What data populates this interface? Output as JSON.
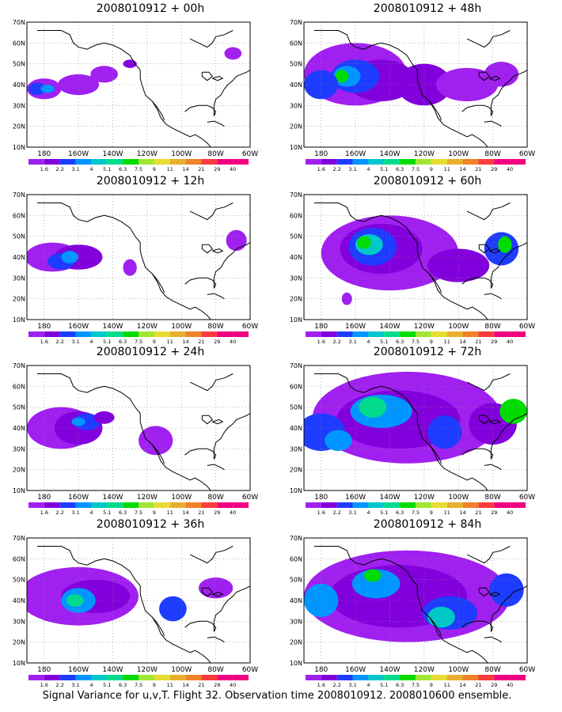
{
  "panels": [
    {
      "title": "2008010912 + 00h"
    },
    {
      "title": "2008010912 + 48h"
    },
    {
      "title": "2008010912 + 12h"
    },
    {
      "title": "2008010912 + 60h"
    },
    {
      "title": "2008010912 + 24h"
    },
    {
      "title": "2008010912 + 72h"
    },
    {
      "title": "2008010912 + 36h"
    },
    {
      "title": "2008010912 + 84h"
    }
  ],
  "lat_labels": [
    "70N",
    "60N",
    "50N",
    "40N",
    "30N",
    "20N",
    "10N"
  ],
  "lon_labels": [
    "180",
    "160W",
    "140W",
    "120W",
    "100W",
    "80W",
    "60W"
  ],
  "colorbar": {
    "labels": [
      "1.6",
      "2.2",
      "3.1",
      "4",
      "5.1",
      "6.3",
      "7.5",
      "9",
      "11",
      "14",
      "21",
      "29",
      "40"
    ],
    "colors": [
      "#a020f0",
      "#8200dc",
      "#1e3cff",
      "#0096ff",
      "#00c8c8",
      "#00dc8c",
      "#00dc00",
      "#a0e632",
      "#e6dc32",
      "#e6af2d",
      "#f08228",
      "#fa3c3c",
      "#f00082"
    ]
  },
  "footer": "Signal Variance for u,v,T. Flight 32. Observation time 2008010912. 2008010600 ensemble."
}
